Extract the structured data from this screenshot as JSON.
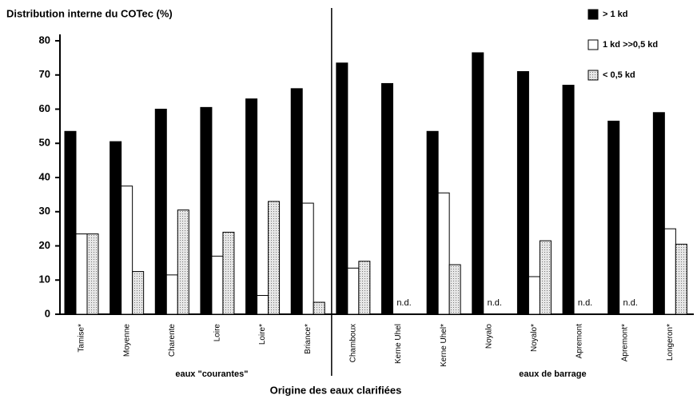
{
  "chart_data": {
    "type": "bar",
    "title": "Distribution interne du COTec (%)",
    "x_label": "Origine des eaux clarifiées",
    "categories": [
      "Tamise*",
      "Moyenne",
      "Charente",
      "Loire",
      "Loire*",
      "Briance*",
      "Chamboux",
      "Kerne Uhel",
      "Kerne Uhel*",
      "Noyalo",
      "Noyalo*",
      "Apremont",
      "Apremont*",
      "Longeron*"
    ],
    "groups": [
      "eaux \"courantes\"",
      "eaux de barrage"
    ],
    "series": [
      {
        "name": "> 1 kd",
        "color": "#000000",
        "values": [
          53.5,
          50.5,
          60,
          60.5,
          63,
          66,
          73.5,
          67.5,
          53.5,
          76.5,
          71,
          67,
          56.5,
          59
        ]
      },
      {
        "name": "1 kd >>0,5 kd",
        "color": "#ffffff",
        "values": [
          23.5,
          37.5,
          11.5,
          17,
          5.5,
          32.5,
          13.5,
          null,
          35.5,
          null,
          11,
          null,
          null,
          25
        ],
        "value_labels": [
          null,
          null,
          null,
          null,
          null,
          null,
          null,
          "n.d.",
          null,
          "n.d.",
          null,
          "n.d.",
          "n.d.",
          null
        ]
      },
      {
        "name": "< 0,5 kd",
        "color": "#d4d4d4",
        "values": [
          23.5,
          12.5,
          30.5,
          24,
          33,
          3.5,
          15.5,
          null,
          14.5,
          null,
          21.5,
          null,
          null,
          20.5
        ]
      }
    ],
    "ylim": [
      0,
      80
    ],
    "yticks": [
      0,
      10,
      20,
      30,
      40,
      50,
      60,
      70,
      80
    ]
  }
}
